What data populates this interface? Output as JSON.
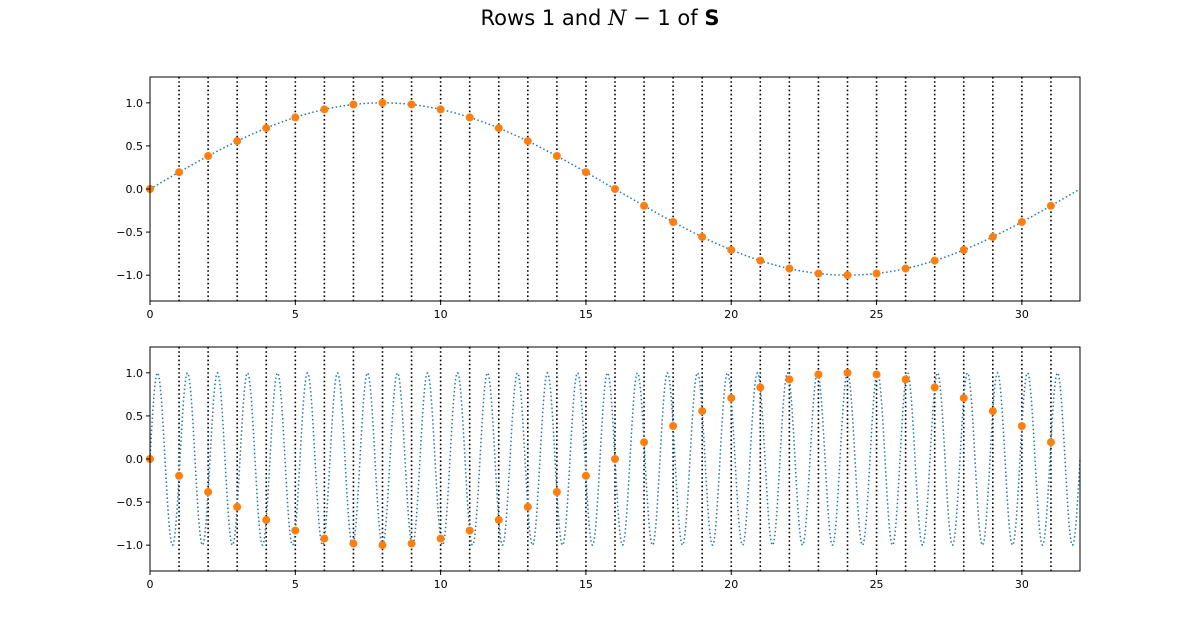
{
  "figure": {
    "title_parts": {
      "prefix": "Rows 1 and ",
      "math_var": "N",
      "math_op": " − 1",
      "middle": " of ",
      "bold_var": "S"
    }
  },
  "colors": {
    "curve": "#1f77b4",
    "points": "#ff7f0e",
    "vlines": "#000000",
    "axes": "#000000"
  },
  "chart_data": [
    {
      "type": "line",
      "subplot": "top",
      "curve_frequency": 1,
      "xlim": [
        0,
        32
      ],
      "ylim": [
        -1.3,
        1.3
      ],
      "xticks": [
        0,
        5,
        10,
        15,
        20,
        25,
        30
      ],
      "xtick_labels": [
        "0",
        "5",
        "10",
        "15",
        "20",
        "25",
        "30"
      ],
      "yticks": [
        1.0,
        0.5,
        0.0,
        -0.5,
        -1.0
      ],
      "ytick_labels": [
        "1.0",
        "0.5",
        "0.0",
        "−0.5",
        "−1.0"
      ],
      "vlines": [
        1,
        2,
        3,
        4,
        5,
        6,
        7,
        8,
        9,
        10,
        11,
        12,
        13,
        14,
        15,
        16,
        17,
        18,
        19,
        20,
        21,
        22,
        23,
        24,
        25,
        26,
        27,
        28,
        29,
        30,
        31
      ],
      "points_x": [
        0,
        1,
        2,
        3,
        4,
        5,
        6,
        7,
        8,
        9,
        10,
        11,
        12,
        13,
        14,
        15,
        16,
        17,
        18,
        19,
        20,
        21,
        22,
        23,
        24,
        25,
        26,
        27,
        28,
        29,
        30,
        31
      ],
      "points_y": [
        0.0,
        0.195,
        0.383,
        0.556,
        0.707,
        0.831,
        0.924,
        0.981,
        1.0,
        0.981,
        0.924,
        0.831,
        0.707,
        0.556,
        0.383,
        0.195,
        0.0,
        -0.195,
        -0.383,
        -0.556,
        -0.707,
        -0.831,
        -0.924,
        -0.981,
        -1.0,
        -0.981,
        -0.924,
        -0.831,
        -0.707,
        -0.556,
        -0.383,
        -0.195
      ]
    },
    {
      "type": "line",
      "subplot": "bottom",
      "curve_frequency": 31,
      "xlim": [
        0,
        32
      ],
      "ylim": [
        -1.3,
        1.3
      ],
      "xticks": [
        0,
        5,
        10,
        15,
        20,
        25,
        30
      ],
      "xtick_labels": [
        "0",
        "5",
        "10",
        "15",
        "20",
        "25",
        "30"
      ],
      "yticks": [
        1.0,
        0.5,
        0.0,
        -0.5,
        -1.0
      ],
      "ytick_labels": [
        "1.0",
        "0.5",
        "0.0",
        "−0.5",
        "−1.0"
      ],
      "vlines": [
        1,
        2,
        3,
        4,
        5,
        6,
        7,
        8,
        9,
        10,
        11,
        12,
        13,
        14,
        15,
        16,
        17,
        18,
        19,
        20,
        21,
        22,
        23,
        24,
        25,
        26,
        27,
        28,
        29,
        30,
        31
      ],
      "points_x": [
        0,
        1,
        2,
        3,
        4,
        5,
        6,
        7,
        8,
        9,
        10,
        11,
        12,
        13,
        14,
        15,
        16,
        17,
        18,
        19,
        20,
        21,
        22,
        23,
        24,
        25,
        26,
        27,
        28,
        29,
        30,
        31
      ],
      "points_y": [
        0.0,
        -0.195,
        -0.383,
        -0.556,
        -0.707,
        -0.831,
        -0.924,
        -0.981,
        -1.0,
        -0.981,
        -0.924,
        -0.831,
        -0.707,
        -0.556,
        -0.383,
        -0.195,
        0.0,
        0.195,
        0.383,
        0.556,
        0.707,
        0.831,
        0.924,
        0.981,
        1.0,
        0.981,
        0.924,
        0.831,
        0.707,
        0.556,
        0.383,
        0.195
      ]
    }
  ]
}
